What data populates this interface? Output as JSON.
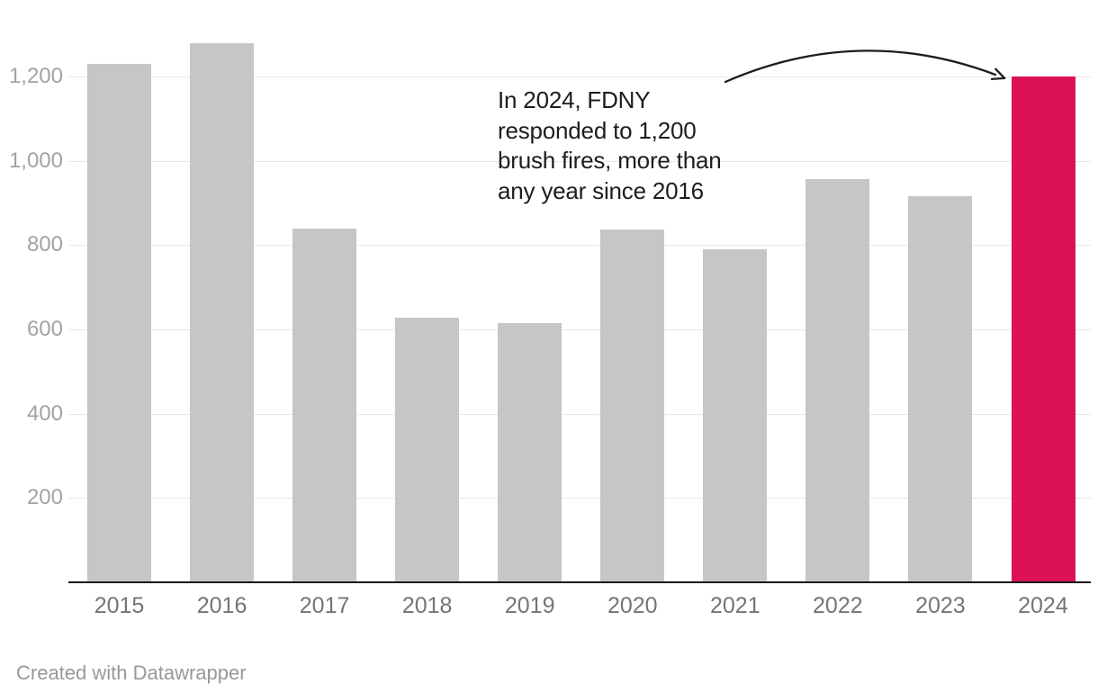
{
  "chart_data": {
    "type": "bar",
    "categories": [
      "2015",
      "2016",
      "2017",
      "2018",
      "2019",
      "2020",
      "2021",
      "2022",
      "2023",
      "2024"
    ],
    "values": [
      1230,
      1280,
      840,
      628,
      615,
      836,
      791,
      956,
      917,
      1200
    ],
    "highlight_category": "2024",
    "title": "",
    "xlabel": "",
    "ylabel": "",
    "ylim": [
      0,
      1300
    ],
    "grid": "horizontal",
    "legend": "none",
    "yticks": {
      "values": [
        200,
        400,
        600,
        800,
        1000,
        1200
      ],
      "labels": [
        "200",
        "400",
        "600",
        "800",
        "1,000",
        "1,200"
      ]
    },
    "annotation": {
      "text": "In 2024, FDNY responded to 1,200 brush fires, more than any year since 2016",
      "lines": [
        "In 2024, FDNY",
        "responded to 1,200",
        "brush fires, more than",
        "any year since 2016"
      ]
    },
    "colors": {
      "bar": "#c6c6c6",
      "highlight": "#dc1259",
      "grid": "#e9e9e9",
      "axis_line": "#1a1a1a",
      "ytick_text": "#a3a3a3",
      "xtick_text": "#757575",
      "annotation_text": "#1d1d1d",
      "arrow": "#1d1d1d",
      "credit_text": "#989898"
    }
  },
  "footer": {
    "credit": "Created with Datawrapper"
  }
}
